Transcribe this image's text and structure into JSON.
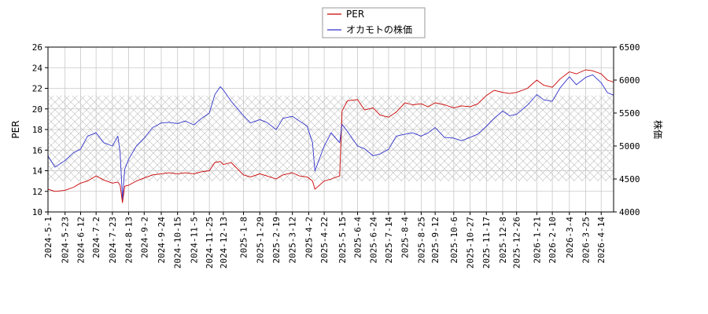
{
  "chart_data": {
    "type": "line",
    "legend_position": "top-center",
    "grid": true,
    "ylabel_left": "PER",
    "ylabel_right": "株価",
    "ylim_left": [
      10,
      26
    ],
    "ylim_right": [
      4000,
      6500
    ],
    "yticks_left": [
      "10",
      "12",
      "14",
      "16",
      "18",
      "20",
      "22",
      "24",
      "26"
    ],
    "yticks_right": [
      "4000",
      "4500",
      "5000",
      "5500",
      "6000",
      "6500"
    ],
    "hatched_band_left": [
      13.0,
      21.3
    ],
    "x_ticks": [
      "2024-5-1",
      "2024-5-23",
      "2024-6-12",
      "2024-7-2",
      "2024-7-23",
      "2024-8-13",
      "2024-9-2",
      "2024-9-24",
      "2024-10-15",
      "2024-11-5",
      "2024-11-25",
      "2024-12-13",
      "2025-1-8",
      "2025-1-29",
      "2025-2-19",
      "2025-3-12",
      "2025-4-2",
      "2025-4-22",
      "2025-5-15",
      "2025-6-4",
      "2025-6-24",
      "2025-7-14",
      "2025-8-4",
      "2025-8-25",
      "2025-9-12",
      "2025-10-6",
      "2025-10-27",
      "2025-11-17",
      "2025-12-8",
      "2025-12-26",
      "2026-1-21",
      "2026-2-10",
      "2026-3-4",
      "2026-3-25",
      "2026-4-14"
    ],
    "series": [
      {
        "name": "PER",
        "color": "#cc0000",
        "axis": "left",
        "x": [
          "2024-5-1",
          "2024-5-10",
          "2024-5-23",
          "2024-6-3",
          "2024-6-12",
          "2024-6-21",
          "2024-7-2",
          "2024-7-12",
          "2024-7-23",
          "2024-7-30",
          "2024-8-2",
          "2024-8-5",
          "2024-8-8",
          "2024-8-13",
          "2024-8-23",
          "2024-9-2",
          "2024-9-13",
          "2024-9-24",
          "2024-10-4",
          "2024-10-15",
          "2024-10-25",
          "2024-11-5",
          "2024-11-15",
          "2024-11-25",
          "2024-12-2",
          "2024-12-9",
          "2024-12-13",
          "2024-12-23",
          "2025-1-8",
          "2025-1-17",
          "2025-1-29",
          "2025-2-7",
          "2025-2-19",
          "2025-2-28",
          "2025-3-12",
          "2025-3-21",
          "2025-3-31",
          "2025-4-7",
          "2025-4-10",
          "2025-4-22",
          "2025-5-1",
          "2025-5-12",
          "2025-5-15",
          "2025-5-22",
          "2025-6-4",
          "2025-6-13",
          "2025-6-24",
          "2025-7-3",
          "2025-7-14",
          "2025-7-24",
          "2025-8-4",
          "2025-8-14",
          "2025-8-25",
          "2025-9-3",
          "2025-9-12",
          "2025-9-24",
          "2025-10-6",
          "2025-10-16",
          "2025-10-27",
          "2025-11-6",
          "2025-11-17",
          "2025-11-27",
          "2025-12-8",
          "2025-12-17",
          "2025-12-26",
          "2026-1-9",
          "2026-1-21",
          "2026-1-30",
          "2026-2-10",
          "2026-2-20",
          "2026-3-4",
          "2026-3-13",
          "2026-3-25",
          "2026-4-3",
          "2026-4-14",
          "2026-4-22",
          "2026-4-30"
        ],
        "values": [
          12.2,
          12.0,
          12.1,
          12.4,
          12.8,
          13.0,
          13.5,
          13.1,
          12.8,
          12.9,
          12.6,
          10.9,
          12.5,
          12.6,
          13.0,
          13.3,
          13.6,
          13.7,
          13.8,
          13.7,
          13.8,
          13.7,
          13.9,
          14.0,
          14.8,
          14.9,
          14.6,
          14.8,
          13.6,
          13.4,
          13.7,
          13.5,
          13.2,
          13.6,
          13.8,
          13.5,
          13.4,
          13.0,
          12.2,
          13.0,
          13.2,
          13.5,
          19.8,
          20.8,
          20.9,
          19.9,
          20.1,
          19.4,
          19.2,
          19.7,
          20.6,
          20.4,
          20.5,
          20.2,
          20.6,
          20.4,
          20.1,
          20.3,
          20.2,
          20.5,
          21.3,
          21.8,
          21.6,
          21.5,
          21.6,
          22.0,
          22.8,
          22.3,
          22.1,
          22.9,
          23.6,
          23.4,
          23.8,
          23.7,
          23.4,
          22.8,
          22.6
        ]
      },
      {
        "name": "オカモトの株価",
        "color": "#3333cc",
        "axis": "right",
        "x": [
          "2024-5-1",
          "2024-5-10",
          "2024-5-23",
          "2024-6-3",
          "2024-6-12",
          "2024-6-21",
          "2024-7-2",
          "2024-7-12",
          "2024-7-23",
          "2024-7-30",
          "2024-8-2",
          "2024-8-5",
          "2024-8-8",
          "2024-8-13",
          "2024-8-23",
          "2024-9-2",
          "2024-9-13",
          "2024-9-24",
          "2024-10-4",
          "2024-10-15",
          "2024-10-25",
          "2024-11-5",
          "2024-11-15",
          "2024-11-25",
          "2024-12-2",
          "2024-12-9",
          "2024-12-13",
          "2024-12-23",
          "2025-1-8",
          "2025-1-17",
          "2025-1-29",
          "2025-2-7",
          "2025-2-19",
          "2025-2-28",
          "2025-3-12",
          "2025-3-21",
          "2025-3-31",
          "2025-4-7",
          "2025-4-10",
          "2025-4-22",
          "2025-5-1",
          "2025-5-12",
          "2025-5-15",
          "2025-5-22",
          "2025-6-4",
          "2025-6-13",
          "2025-6-24",
          "2025-7-3",
          "2025-7-14",
          "2025-7-24",
          "2025-8-4",
          "2025-8-14",
          "2025-8-25",
          "2025-9-3",
          "2025-9-12",
          "2025-9-24",
          "2025-10-6",
          "2025-10-16",
          "2025-10-27",
          "2025-11-6",
          "2025-11-17",
          "2025-11-27",
          "2025-12-8",
          "2025-12-17",
          "2025-12-26",
          "2026-1-9",
          "2026-1-21",
          "2026-1-30",
          "2026-2-10",
          "2026-2-20",
          "2026-3-4",
          "2026-3-13",
          "2026-3-25",
          "2026-4-3",
          "2026-4-14",
          "2026-4-22",
          "2026-4-30"
        ],
        "values": [
          4850,
          4680,
          4780,
          4900,
          4950,
          5150,
          5200,
          5050,
          5000,
          5150,
          4900,
          4200,
          4650,
          4800,
          5000,
          5120,
          5280,
          5350,
          5360,
          5340,
          5380,
          5320,
          5420,
          5500,
          5780,
          5900,
          5850,
          5680,
          5460,
          5350,
          5400,
          5360,
          5250,
          5420,
          5450,
          5380,
          5300,
          5050,
          4620,
          5000,
          5200,
          5050,
          5330,
          5220,
          5000,
          4960,
          4850,
          4880,
          4950,
          5150,
          5180,
          5200,
          5150,
          5200,
          5280,
          5130,
          5120,
          5080,
          5130,
          5180,
          5300,
          5420,
          5530,
          5460,
          5480,
          5620,
          5780,
          5700,
          5680,
          5880,
          6050,
          5930,
          6040,
          6080,
          5960,
          5810,
          5770
        ]
      }
    ]
  }
}
